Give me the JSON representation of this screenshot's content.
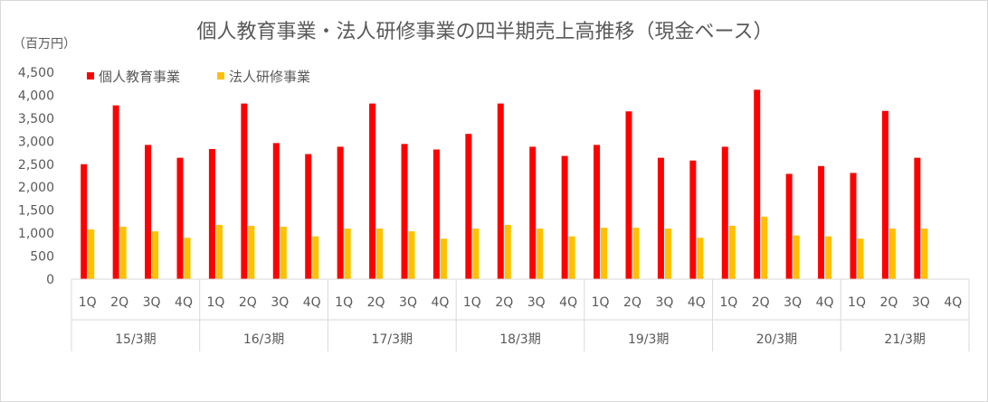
{
  "chart_data": {
    "type": "bar",
    "title": "個人教育事業・法人研修事業の四半期売上高推移（現金ベース）",
    "unit_label": "（百万円）",
    "legend_position": "top-left",
    "ylim": [
      0,
      4500
    ],
    "yticks": [
      0,
      500,
      1000,
      1500,
      2000,
      2500,
      3000,
      3500,
      4000,
      4500
    ],
    "ytick_labels": [
      "0",
      "500",
      "1,000",
      "1,500",
      "2,000",
      "2,500",
      "3,000",
      "3,500",
      "4,000",
      "4,500"
    ],
    "years": [
      "15/3期",
      "16/3期",
      "17/3期",
      "18/3期",
      "19/3期",
      "20/3期",
      "21/3期"
    ],
    "quarters": [
      "1Q",
      "2Q",
      "3Q",
      "4Q"
    ],
    "series": [
      {
        "name": "個人教育事業",
        "color": "#ff0000",
        "values": [
          2500,
          3780,
          2920,
          2640,
          2830,
          3820,
          2960,
          2720,
          2880,
          3820,
          2940,
          2820,
          3160,
          3820,
          2880,
          2680,
          2920,
          3650,
          2640,
          2580,
          2880,
          4120,
          2290,
          2460,
          2310,
          3660,
          2640,
          null
        ]
      },
      {
        "name": "法人研修事業",
        "color": "#ffc000",
        "values": [
          1080,
          1140,
          1040,
          900,
          1180,
          1160,
          1140,
          930,
          1100,
          1100,
          1040,
          880,
          1100,
          1180,
          1100,
          930,
          1120,
          1120,
          1100,
          900,
          1160,
          1360,
          950,
          930,
          880,
          1100,
          1100,
          null
        ]
      }
    ]
  }
}
